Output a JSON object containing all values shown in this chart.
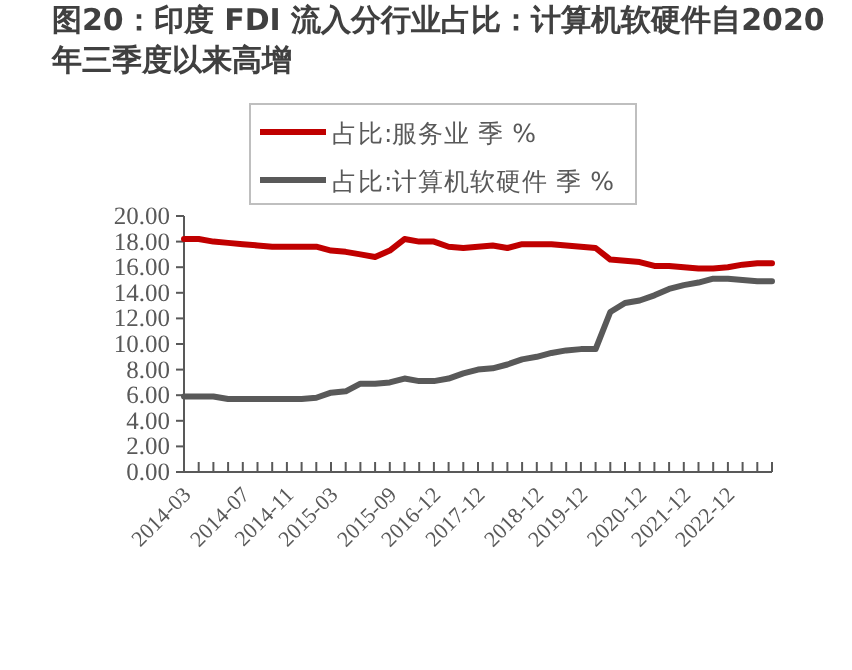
{
  "chart_data": {
    "type": "line",
    "title": "图20：印度 FDI 流入分行业占比：计算机软硬件自2020 年三季度以来高增",
    "categories": [
      "2014-03",
      null,
      null,
      null,
      "2014-07",
      null,
      null,
      "2014-11",
      null,
      null,
      "2015-03",
      null,
      null,
      null,
      "2015-09",
      null,
      null,
      "2016-12",
      null,
      null,
      "2017-12",
      null,
      null,
      null,
      "2018-12",
      null,
      null,
      "2019-12",
      null,
      null,
      null,
      "2020-12",
      null,
      null,
      "2021-12",
      null,
      null,
      "2022-12",
      null,
      null,
      null
    ],
    "series": [
      {
        "name": "占比:服务业 季 %",
        "color": "#c00000",
        "values": [
          18.2,
          18.2,
          18.0,
          17.9,
          17.8,
          17.7,
          17.6,
          17.6,
          17.6,
          17.6,
          17.3,
          17.2,
          17.0,
          16.8,
          17.3,
          18.2,
          18.0,
          18.0,
          17.6,
          17.5,
          17.6,
          17.7,
          17.5,
          17.8,
          17.8,
          17.8,
          17.7,
          17.6,
          17.5,
          16.6,
          16.5,
          16.4,
          16.1,
          16.1,
          16.0,
          15.9,
          15.9,
          16.0,
          16.2,
          16.3,
          16.3
        ]
      },
      {
        "name": "占比:计算机软硬件 季 %",
        "color": "#595959",
        "values": [
          5.9,
          5.9,
          5.9,
          5.7,
          5.7,
          5.7,
          5.7,
          5.7,
          5.7,
          5.8,
          6.2,
          6.3,
          6.9,
          6.9,
          7.0,
          7.3,
          7.1,
          7.1,
          7.3,
          7.7,
          8.0,
          8.1,
          8.4,
          8.8,
          9.0,
          9.3,
          9.5,
          9.6,
          9.6,
          12.5,
          13.2,
          13.4,
          13.8,
          14.3,
          14.6,
          14.8,
          15.1,
          15.1,
          15.0,
          14.9,
          14.9
        ]
      }
    ],
    "ylim": [
      0,
      20
    ],
    "yticks": [
      {
        "value": 0,
        "label": "0.00"
      },
      {
        "value": 2,
        "label": "2.00"
      },
      {
        "value": 4,
        "label": "4.00"
      },
      {
        "value": 6,
        "label": "6.00"
      },
      {
        "value": 8,
        "label": "8.00"
      },
      {
        "value": 10,
        "label": "10.00"
      },
      {
        "value": 12,
        "label": "12.00"
      },
      {
        "value": 14,
        "label": "14.00"
      },
      {
        "value": 16,
        "label": "16.00"
      },
      {
        "value": 18,
        "label": "18.00"
      },
      {
        "value": 20,
        "label": "20.00"
      }
    ],
    "legend": "top"
  }
}
